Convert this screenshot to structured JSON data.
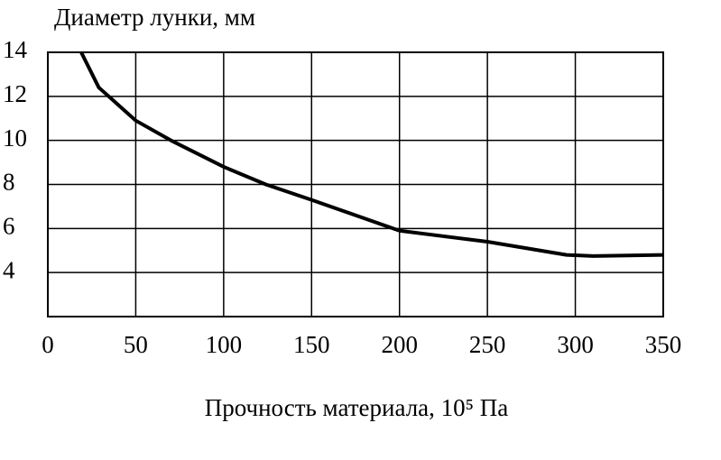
{
  "chart_data": {
    "type": "line",
    "title": "Диаметр лунки, мм",
    "x_label": "Прочность материала, 10⁵ Па",
    "x": [
      19,
      29,
      50,
      70,
      100,
      124,
      150,
      200,
      250,
      295,
      310,
      350
    ],
    "values": [
      14,
      12.4,
      10.9,
      10,
      8.8,
      8,
      7.3,
      5.9,
      5.4,
      4.8,
      4.75,
      4.8
    ],
    "color": "#000000",
    "xlim": [
      0,
      350
    ],
    "xticks": [
      0,
      50,
      100,
      150,
      200,
      250,
      300,
      350
    ],
    "ylim": [
      2,
      14
    ],
    "yticks": [
      4,
      6,
      8,
      10,
      12,
      14
    ],
    "grid": true
  }
}
